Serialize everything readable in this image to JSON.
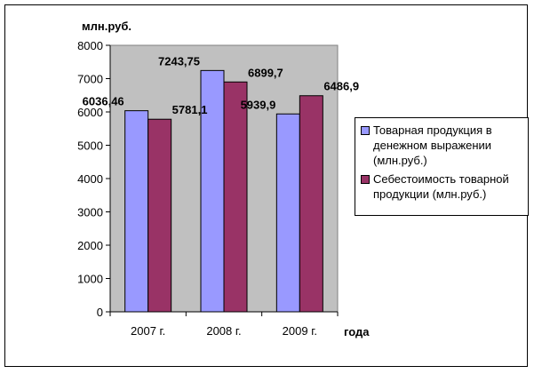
{
  "chart_data": {
    "type": "bar",
    "categories": [
      "2007 г.",
      "2008 г.",
      "2009 г."
    ],
    "series": [
      {
        "name": "Товарная продукция в денежном выражении (млн.руб.)",
        "values": [
          6036.46,
          7243.75,
          5939.9
        ],
        "labels": [
          "6036,46",
          "7243,75",
          "5939,9"
        ],
        "color": "#9999FF"
      },
      {
        "name": "Себестоимость товарной продукции (млн.руб.)",
        "values": [
          5781.1,
          6899.7,
          6486.9
        ],
        "labels": [
          "5781,1",
          "6899,7",
          "6486,9"
        ],
        "color": "#993366"
      }
    ],
    "ylabel": "млн.руб.",
    "xlabel": "года",
    "ylim": [
      0,
      8000
    ],
    "yticks": [
      0,
      1000,
      2000,
      3000,
      4000,
      5000,
      6000,
      7000,
      8000
    ],
    "grid": false,
    "plot_background": "#C0C0C0",
    "legend_position": "right"
  }
}
